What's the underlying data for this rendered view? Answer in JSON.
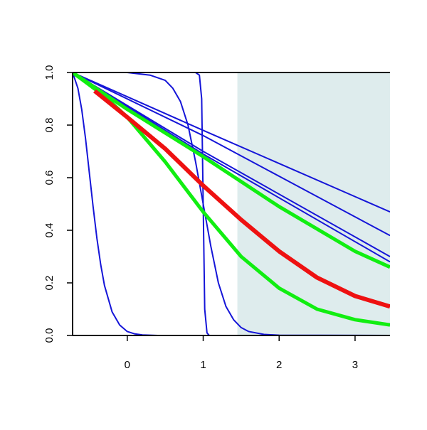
{
  "chart_data": {
    "type": "line",
    "xlim": [
      -0.72,
      3.46
    ],
    "ylim": [
      0,
      1
    ],
    "xticks": [
      0,
      1,
      2,
      3
    ],
    "yticks": [
      {
        "value": 0,
        "label": "0.0"
      },
      {
        "value": 0.2,
        "label": "0.2"
      },
      {
        "value": 0.4,
        "label": "0.4"
      },
      {
        "value": 0.6,
        "label": "0.6"
      },
      {
        "value": 0.8,
        "label": "0.8"
      },
      {
        "value": 1,
        "label": "1.0"
      }
    ],
    "shaded_region": {
      "x": [
        1.45,
        3.46
      ],
      "color": "#deeced"
    },
    "series": [
      {
        "color": "#1515d8",
        "width": 2,
        "x": [
          -0.72,
          -0.65,
          -0.6,
          -0.55,
          -0.5,
          -0.45,
          -0.4,
          -0.35,
          -0.3,
          -0.2,
          -0.1,
          0,
          0.1,
          0.2,
          0.4,
          3.46
        ],
        "values": [
          1,
          0.94,
          0.86,
          0.75,
          0.62,
          0.49,
          0.37,
          0.27,
          0.19,
          0.09,
          0.04,
          0.015,
          0.006,
          0.002,
          0,
          0
        ]
      },
      {
        "color": "#1515d8",
        "width": 2,
        "x": [
          -0.72,
          0,
          0.3,
          0.5,
          0.6,
          0.7,
          0.8,
          0.9,
          1,
          1.1,
          1.2,
          1.3,
          1.4,
          1.5,
          1.6,
          1.8,
          2,
          3.46
        ],
        "values": [
          1,
          1,
          0.99,
          0.97,
          0.94,
          0.89,
          0.8,
          0.66,
          0.5,
          0.34,
          0.2,
          0.11,
          0.06,
          0.03,
          0.015,
          0.004,
          0.001,
          0
        ]
      },
      {
        "color": "#1515d8",
        "width": 2,
        "x": [
          -0.72,
          0.9,
          0.95,
          0.98,
          1,
          1.02,
          1.05,
          1.08,
          3.46
        ],
        "values": [
          1,
          1,
          0.99,
          0.9,
          0.5,
          0.1,
          0.01,
          0,
          0
        ]
      },
      {
        "color": "#1515d8",
        "width": 2,
        "x": [
          -0.72,
          1,
          3.46
        ],
        "values": [
          1,
          0.78,
          0.47
        ]
      },
      {
        "color": "#1515d8",
        "width": 2,
        "x": [
          -0.72,
          1,
          3.46
        ],
        "values": [
          1,
          0.76,
          0.38
        ]
      },
      {
        "color": "#1515d8",
        "width": 2,
        "x": [
          -0.72,
          1,
          3.46
        ],
        "values": [
          1,
          0.7,
          0.3
        ]
      },
      {
        "color": "#1515d8",
        "width": 2,
        "x": [
          -0.72,
          1,
          3.46
        ],
        "values": [
          1,
          0.69,
          0.28
        ]
      },
      {
        "color": "#11ee11",
        "width": 5,
        "x": [
          -0.72,
          0,
          1,
          2,
          3,
          3.46
        ],
        "values": [
          1,
          0.86,
          0.68,
          0.49,
          0.32,
          0.26
        ]
      },
      {
        "color": "#11ee11",
        "width": 5,
        "x": [
          -0.72,
          -0.3,
          0,
          0.5,
          1,
          1.5,
          2,
          2.5,
          3,
          3.46
        ],
        "values": [
          1,
          0.91,
          0.83,
          0.66,
          0.47,
          0.3,
          0.18,
          0.1,
          0.06,
          0.04
        ]
      },
      {
        "color": "#ee1111",
        "width": 6,
        "x": [
          -0.43,
          0,
          0.5,
          1,
          1.5,
          2,
          2.5,
          3,
          3.46
        ],
        "values": [
          0.93,
          0.83,
          0.71,
          0.57,
          0.44,
          0.32,
          0.22,
          0.15,
          0.11
        ]
      }
    ]
  }
}
